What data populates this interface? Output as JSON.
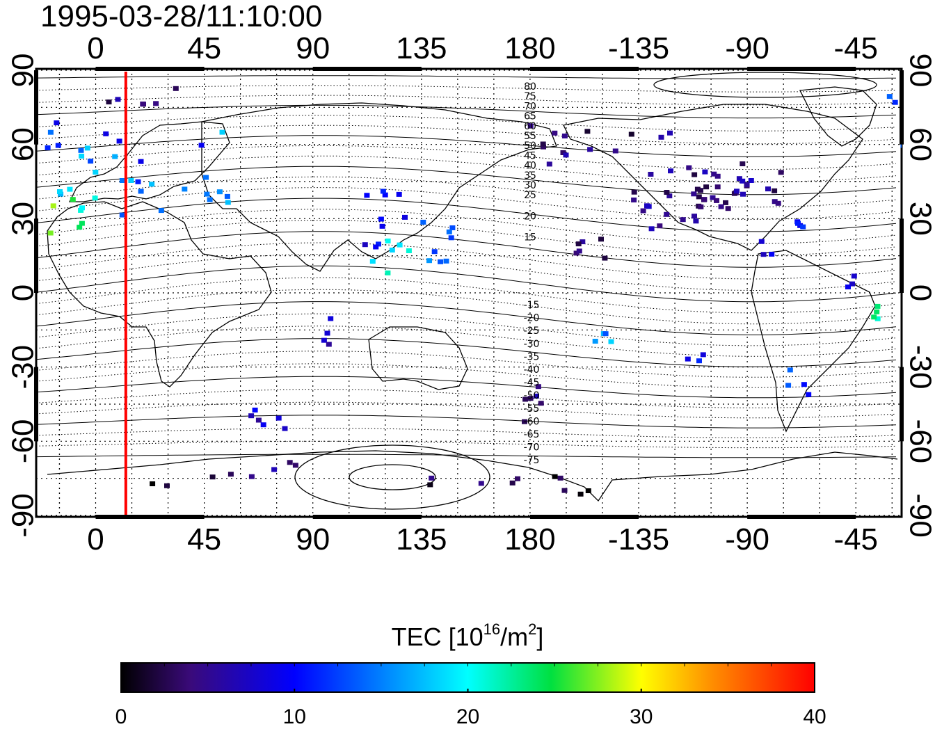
{
  "title": "1995-03-28/11:10:00",
  "lon_ticks": [
    "0",
    "45",
    "90",
    "135",
    "180",
    "-135",
    "-90",
    "-45"
  ],
  "lat_ticks_left": [
    "90",
    "60",
    "30",
    "0",
    "-30",
    "-60",
    "-90"
  ],
  "lat_ticks_right": [
    "90",
    "60",
    "30",
    "0",
    "-30",
    "-60",
    "-90"
  ],
  "contour_labels_north": [
    "80",
    "75",
    "70",
    "65",
    "60",
    "55",
    "50",
    "45",
    "40",
    "35",
    "30",
    "25",
    "20",
    "15"
  ],
  "contour_labels_south": [
    "-15",
    "-20",
    "-25",
    "-30",
    "-35",
    "-40",
    "-45",
    "-50",
    "-55",
    "-60",
    "-65",
    "-70",
    "-75"
  ],
  "colorbar": {
    "title": "TEC  [10",
    "title_sup": "16",
    "title_mid": "/m",
    "title_sup2": "2",
    "title_end": "]",
    "ticks": [
      "0",
      "10",
      "20",
      "30",
      "40"
    ],
    "min": 0,
    "max": 40
  },
  "marker_lon": 12.5,
  "colors": {
    "marker": "#ff0000",
    "frame": "#000000"
  }
}
